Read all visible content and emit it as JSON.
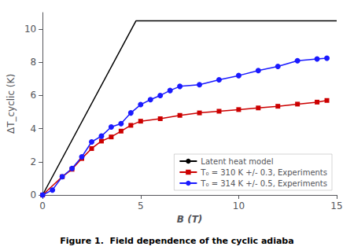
{
  "chart_data": {
    "type": "line",
    "title": "",
    "xlabel": "B (T)",
    "ylabel": "ΔT_cyclic (K)",
    "annotations": [
      "Figure 1.  Field dependence of the cyclic adiaba"
    ],
    "xlim": [
      0,
      15
    ],
    "ylim": [
      0,
      11
    ],
    "xticks": [
      0,
      5,
      10,
      15
    ],
    "yticks": [
      0,
      2,
      4,
      6,
      8,
      10
    ],
    "grid": false,
    "legend": "lower right",
    "series": [
      {
        "name": "Latent heat model",
        "color": "#000000",
        "marker": "none",
        "line_style": "solid",
        "x": [
          0,
          4.76,
          15
        ],
        "values": [
          0,
          10.5,
          10.5
        ]
      },
      {
        "name": "T₀ = 310 K +/- 0.3, Experiments",
        "color": "#cc0000",
        "marker": "square",
        "line_style": "solid",
        "x": [
          0,
          1.0,
          1.5,
          2.0,
          2.5,
          3.0,
          3.5,
          4.0,
          4.5,
          5.0,
          6.0,
          7.0,
          8.0,
          9.0,
          10.0,
          11.0,
          12.0,
          13.0,
          14.0,
          14.5
        ],
        "values": [
          0,
          1.1,
          1.55,
          2.2,
          2.8,
          3.25,
          3.5,
          3.85,
          4.2,
          4.45,
          4.6,
          4.8,
          4.95,
          5.05,
          5.15,
          5.25,
          5.35,
          5.48,
          5.6,
          5.7
        ]
      },
      {
        "name": "T₀ = 314 K +/- 0.5, Experiments",
        "color": "#1a1aff",
        "marker": "circle",
        "line_style": "solid",
        "x": [
          0,
          0.5,
          1.0,
          1.5,
          2.0,
          2.5,
          3.0,
          3.5,
          4.0,
          4.5,
          5.0,
          5.5,
          6.0,
          6.5,
          7.0,
          8.0,
          9.0,
          10.0,
          11.0,
          12.0,
          13.0,
          14.0,
          14.5
        ],
        "values": [
          0,
          0.3,
          1.1,
          1.6,
          2.3,
          3.2,
          3.55,
          4.1,
          4.3,
          4.95,
          5.45,
          5.75,
          6.0,
          6.3,
          6.55,
          6.65,
          6.95,
          7.2,
          7.5,
          7.75,
          8.1,
          8.2,
          8.25
        ]
      }
    ]
  }
}
